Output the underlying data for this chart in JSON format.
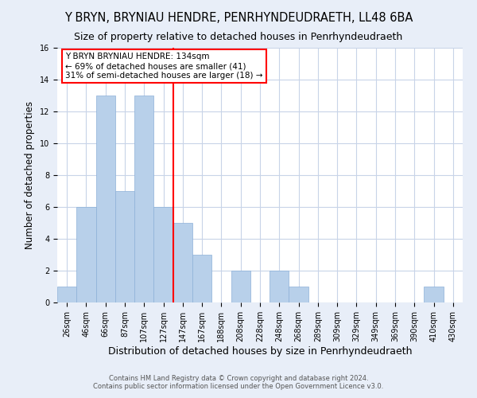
{
  "title": "Y BRYN, BRYNIAU HENDRE, PENRHYNDEUDRAETH, LL48 6BA",
  "subtitle": "Size of property relative to detached houses in Penrhyndeudraeth",
  "xlabel": "Distribution of detached houses by size in Penrhyndeudraeth",
  "ylabel": "Number of detached properties",
  "bin_labels": [
    "26sqm",
    "46sqm",
    "66sqm",
    "87sqm",
    "107sqm",
    "127sqm",
    "147sqm",
    "167sqm",
    "188sqm",
    "208sqm",
    "228sqm",
    "248sqm",
    "268sqm",
    "289sqm",
    "309sqm",
    "329sqm",
    "349sqm",
    "369sqm",
    "390sqm",
    "410sqm",
    "430sqm"
  ],
  "bar_values": [
    1,
    6,
    13,
    7,
    13,
    6,
    5,
    3,
    0,
    2,
    0,
    2,
    1,
    0,
    0,
    0,
    0,
    0,
    0,
    1,
    0
  ],
  "bar_color": "#b8d0ea",
  "bar_edge_color": "#8cb0d8",
  "marker_line_color": "red",
  "ylim": [
    0,
    16
  ],
  "yticks": [
    0,
    2,
    4,
    6,
    8,
    10,
    12,
    14,
    16
  ],
  "annotation_title": "Y BRYN BRYNIAU HENDRE: 134sqm",
  "annotation_line1": "← 69% of detached houses are smaller (41)",
  "annotation_line2": "31% of semi-detached houses are larger (18) →",
  "footer1": "Contains HM Land Registry data © Crown copyright and database right 2024.",
  "footer2": "Contains public sector information licensed under the Open Government Licence v3.0.",
  "background_color": "#e8eef8",
  "plot_background_color": "#ffffff",
  "grid_color": "#c8d4e8",
  "title_fontsize": 10.5,
  "subtitle_fontsize": 9,
  "xlabel_fontsize": 9,
  "ylabel_fontsize": 8.5,
  "annotation_fontsize": 7.5,
  "tick_fontsize": 7,
  "footer_fontsize": 6
}
